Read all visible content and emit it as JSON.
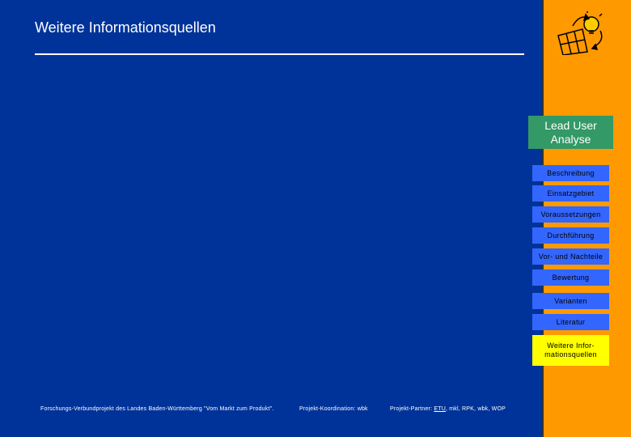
{
  "header": {
    "title": "Weitere Informationsquellen"
  },
  "sidebar": {
    "section_title": "Lead User Analyse",
    "nav": [
      {
        "label": "Beschreibung"
      },
      {
        "label": "Einsatzgebiet"
      },
      {
        "label": "Voraussetzungen"
      },
      {
        "label": "Durchführung"
      },
      {
        "label": "Vor- und Nachteile"
      },
      {
        "label": "Bewertung"
      },
      {
        "label": "Varianten"
      },
      {
        "label": "Literatur"
      },
      {
        "label": "Weitere Infor-mationsquellen",
        "active": true
      }
    ]
  },
  "footer": {
    "project": "Forschungs-Verbundprojekt des Landes Baden-Württemberg \"Vom Markt zum Produkt\".",
    "coordination": "Projekt-Koordination: wbk",
    "partners_prefix": "Projekt-Partner:",
    "partners_link": "ETU",
    "partners_rest": ", mkl, RPK, wbk, WOP"
  },
  "colors": {
    "background": "#003399",
    "sidebar": "#ff9900",
    "section_box": "#339966",
    "nav_button": "#3366ff",
    "nav_active": "#ffff00"
  }
}
